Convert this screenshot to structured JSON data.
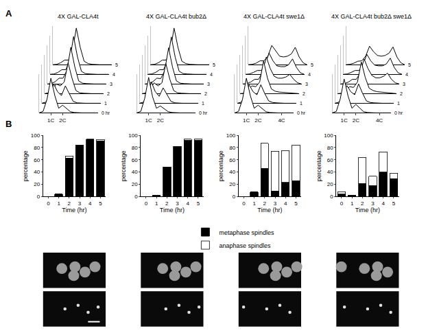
{
  "panel_labels": [
    "A",
    "B"
  ],
  "chart_data": [
    {
      "type": "line",
      "title": "4X GAL-CLA4t",
      "tick_labels": "x",
      "x": [
        0,
        1,
        2,
        3,
        4,
        5,
        6,
        7,
        8,
        9,
        10,
        11,
        12,
        13,
        14,
        15
      ],
      "xlim": [
        0,
        15
      ],
      "xticks": [
        {
          "value": 3,
          "label": "1C"
        },
        {
          "value": 6,
          "label": "2C"
        }
      ],
      "ylim": [
        0,
        100
      ],
      "series": [
        {
          "name": "0 hr",
          "values": [
            0,
            4,
            35,
            90,
            45,
            12,
            20,
            12,
            3,
            1,
            0,
            0,
            0,
            0,
            0,
            0
          ]
        },
        {
          "name": "1",
          "values": [
            0,
            3,
            20,
            50,
            30,
            20,
            45,
            25,
            5,
            1,
            0,
            0,
            0,
            0,
            0,
            0
          ]
        },
        {
          "name": "2",
          "values": [
            0,
            2,
            10,
            25,
            20,
            30,
            80,
            40,
            8,
            2,
            1,
            0,
            0,
            0,
            0,
            0
          ]
        },
        {
          "name": "3",
          "values": [
            0,
            1,
            6,
            15,
            15,
            35,
            95,
            45,
            8,
            2,
            1,
            0,
            0,
            0,
            0,
            0
          ]
        },
        {
          "name": "4",
          "values": [
            0,
            1,
            5,
            12,
            12,
            35,
            98,
            45,
            8,
            2,
            1,
            0,
            0,
            0,
            0,
            0
          ]
        },
        {
          "name": "5",
          "values": [
            0,
            1,
            5,
            12,
            12,
            35,
            95,
            45,
            9,
            3,
            1,
            0,
            0,
            0,
            0,
            0
          ]
        }
      ]
    },
    {
      "type": "line",
      "title": "4X GAL-CLA4t bub2Δ",
      "tick_labels": "x",
      "x": [
        0,
        1,
        2,
        3,
        4,
        5,
        6,
        7,
        8,
        9,
        10,
        11,
        12,
        13,
        14,
        15
      ],
      "xlim": [
        0,
        15
      ],
      "xticks": [
        {
          "value": 3,
          "label": "1C"
        },
        {
          "value": 6,
          "label": "2C"
        }
      ],
      "ylim": [
        0,
        100
      ],
      "series": [
        {
          "name": "0 hr",
          "values": [
            0,
            4,
            38,
            92,
            42,
            12,
            18,
            10,
            3,
            1,
            0,
            0,
            0,
            0,
            0,
            0
          ]
        },
        {
          "name": "1",
          "values": [
            0,
            3,
            22,
            55,
            30,
            18,
            40,
            22,
            5,
            1,
            0,
            0,
            0,
            0,
            0,
            0
          ]
        },
        {
          "name": "2",
          "values": [
            0,
            2,
            12,
            28,
            20,
            28,
            78,
            38,
            8,
            2,
            1,
            0,
            0,
            0,
            0,
            0
          ]
        },
        {
          "name": "3",
          "values": [
            0,
            1,
            6,
            15,
            14,
            34,
            94,
            44,
            8,
            2,
            1,
            0,
            0,
            0,
            0,
            0
          ]
        },
        {
          "name": "4",
          "values": [
            0,
            1,
            5,
            12,
            12,
            34,
            97,
            44,
            8,
            2,
            1,
            0,
            0,
            0,
            0,
            0
          ]
        },
        {
          "name": "5",
          "values": [
            0,
            1,
            5,
            12,
            12,
            34,
            95,
            45,
            9,
            3,
            1,
            0,
            0,
            0,
            0,
            0
          ]
        }
      ]
    },
    {
      "type": "line",
      "title": "4X GAL-CLA4t swe1Δ",
      "tick_labels": "x",
      "x": [
        0,
        1,
        2,
        3,
        4,
        5,
        6,
        7,
        8,
        9,
        10,
        11,
        12,
        13,
        14,
        15
      ],
      "xlim": [
        0,
        15
      ],
      "xticks": [
        {
          "value": 3,
          "label": "1C"
        },
        {
          "value": 6,
          "label": "2C"
        },
        {
          "value": 12,
          "label": "4C"
        }
      ],
      "ylim": [
        0,
        100
      ],
      "series": [
        {
          "name": "0 hr",
          "values": [
            0,
            4,
            35,
            90,
            45,
            12,
            20,
            12,
            3,
            1,
            0,
            0,
            0,
            0,
            0,
            0
          ]
        },
        {
          "name": "1",
          "values": [
            0,
            3,
            20,
            48,
            30,
            22,
            48,
            25,
            6,
            2,
            1,
            0,
            0,
            0,
            0,
            0
          ]
        },
        {
          "name": "2",
          "values": [
            0,
            1,
            8,
            20,
            18,
            30,
            85,
            40,
            12,
            6,
            4,
            3,
            2,
            1,
            0,
            0
          ]
        },
        {
          "name": "3",
          "values": [
            0,
            1,
            5,
            12,
            12,
            30,
            70,
            40,
            20,
            15,
            15,
            18,
            25,
            12,
            3,
            0
          ]
        },
        {
          "name": "4",
          "values": [
            0,
            1,
            5,
            10,
            10,
            25,
            55,
            35,
            22,
            20,
            20,
            25,
            40,
            18,
            4,
            0
          ]
        },
        {
          "name": "5",
          "values": [
            0,
            1,
            4,
            10,
            10,
            22,
            50,
            35,
            22,
            20,
            22,
            28,
            45,
            20,
            5,
            0
          ]
        }
      ]
    },
    {
      "type": "line",
      "title": "4X GAL-CLA4t bub2Δ swe1Δ",
      "tick_labels": "x",
      "x": [
        0,
        1,
        2,
        3,
        4,
        5,
        6,
        7,
        8,
        9,
        10,
        11,
        12,
        13,
        14,
        15
      ],
      "xlim": [
        0,
        15
      ],
      "xticks": [
        {
          "value": 3,
          "label": "1C"
        },
        {
          "value": 6,
          "label": "2C"
        },
        {
          "value": 12,
          "label": "4C"
        }
      ],
      "ylim": [
        0,
        100
      ],
      "series": [
        {
          "name": "0 hr",
          "values": [
            0,
            4,
            36,
            88,
            44,
            12,
            22,
            12,
            3,
            1,
            0,
            0,
            0,
            0,
            0,
            0
          ]
        },
        {
          "name": "1",
          "values": [
            0,
            3,
            20,
            46,
            30,
            22,
            50,
            26,
            6,
            2,
            1,
            0,
            0,
            0,
            0,
            0
          ]
        },
        {
          "name": "2",
          "values": [
            0,
            1,
            8,
            18,
            16,
            30,
            82,
            42,
            14,
            8,
            5,
            4,
            3,
            1,
            0,
            0
          ]
        },
        {
          "name": "3",
          "values": [
            0,
            1,
            5,
            12,
            12,
            28,
            65,
            40,
            22,
            16,
            16,
            20,
            28,
            12,
            3,
            0
          ]
        },
        {
          "name": "4",
          "values": [
            0,
            1,
            5,
            10,
            10,
            24,
            52,
            35,
            24,
            22,
            22,
            27,
            42,
            18,
            4,
            0
          ]
        },
        {
          "name": "5",
          "values": [
            0,
            1,
            4,
            9,
            10,
            22,
            48,
            34,
            24,
            22,
            24,
            30,
            46,
            20,
            5,
            0
          ]
        }
      ]
    },
    {
      "type": "bar",
      "stacked": true,
      "legend": "bottom",
      "xlabel": "Time (hr)",
      "ylabel": "percentage",
      "categories": [
        "0",
        "1",
        "2",
        "3",
        "4",
        "5"
      ],
      "ylim": [
        0,
        100
      ],
      "yticks": [
        0,
        20,
        40,
        60,
        80,
        100
      ],
      "series": [
        {
          "name": "metaphase spindles",
          "color": "#000000",
          "values": [
            0,
            4,
            63,
            84,
            93,
            91
          ]
        },
        {
          "name": "anaphase spindles",
          "color": "#ffffff",
          "values": [
            0,
            0,
            3,
            0,
            1,
            2
          ]
        }
      ]
    },
    {
      "type": "bar",
      "stacked": true,
      "xlabel": "Time (hr)",
      "ylabel": "percentage",
      "categories": [
        "0",
        "1",
        "2",
        "3",
        "4",
        "5"
      ],
      "ylim": [
        0,
        100
      ],
      "yticks": [
        0,
        20,
        40,
        60,
        80,
        100
      ],
      "series": [
        {
          "name": "metaphase spindles",
          "color": "#000000",
          "values": [
            0,
            2,
            48,
            82,
            92,
            92
          ]
        },
        {
          "name": "anaphase spindles",
          "color": "#ffffff",
          "values": [
            0,
            0,
            0,
            0,
            2,
            2
          ]
        }
      ]
    },
    {
      "type": "bar",
      "stacked": true,
      "xlabel": "Time (hr)",
      "ylabel": "percentage",
      "categories": [
        "0",
        "1",
        "2",
        "3",
        "4",
        "5"
      ],
      "ylim": [
        0,
        100
      ],
      "yticks": [
        0,
        20,
        40,
        60,
        80,
        100
      ],
      "series": [
        {
          "name": "metaphase spindles",
          "color": "#000000",
          "values": [
            0,
            7,
            46,
            9,
            23,
            26
          ]
        },
        {
          "name": "anaphase spindles",
          "color": "#ffffff",
          "values": [
            0,
            0,
            41,
            65,
            52,
            58
          ]
        }
      ]
    },
    {
      "type": "bar",
      "stacked": true,
      "xlabel": "Time (hr)",
      "ylabel": "percentage",
      "categories": [
        "0",
        "1",
        "2",
        "3",
        "4",
        "5"
      ],
      "ylim": [
        0,
        100
      ],
      "yticks": [
        0,
        20,
        40,
        60,
        80,
        100
      ],
      "series": [
        {
          "name": "metaphase spindles",
          "color": "#000000",
          "values": [
            4,
            2,
            21,
            18,
            40,
            29
          ]
        },
        {
          "name": "anaphase spindles",
          "color": "#ffffff",
          "values": [
            4,
            0,
            43,
            15,
            33,
            9
          ]
        }
      ]
    }
  ]
}
